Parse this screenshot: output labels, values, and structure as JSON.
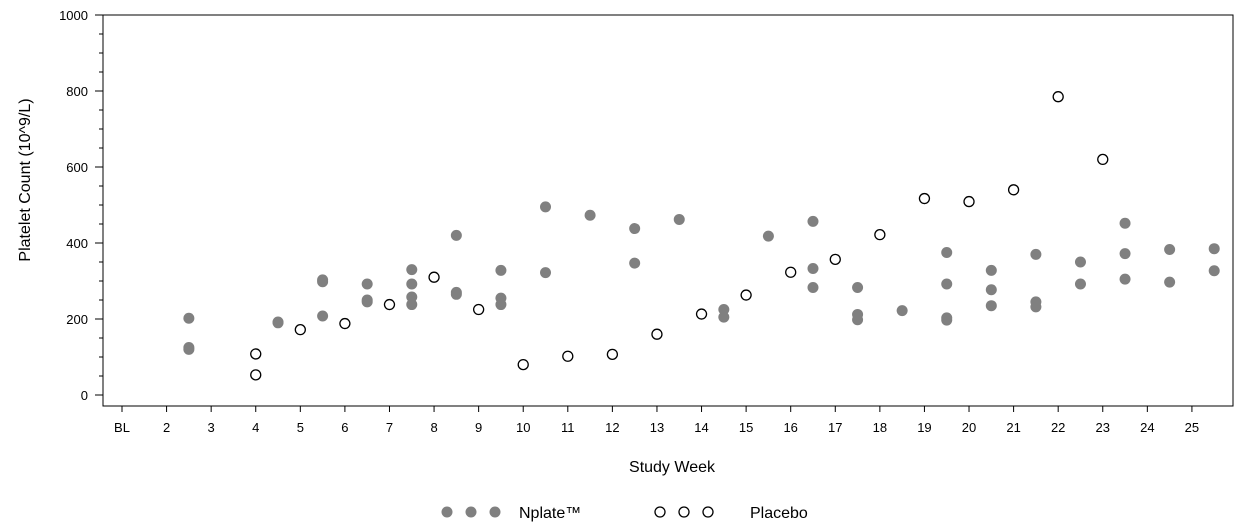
{
  "chart_data": {
    "type": "scatter",
    "title": "",
    "xlabel": "Study Week",
    "ylabel": "Platelet Count (10^9/L)",
    "ylim": [
      0,
      1000
    ],
    "yticks": [
      0,
      200,
      400,
      600,
      800,
      1000
    ],
    "categories": [
      "BL",
      "2",
      "3",
      "4",
      "5",
      "6",
      "7",
      "8",
      "9",
      "10",
      "11",
      "12",
      "13",
      "14",
      "15",
      "16",
      "17",
      "18",
      "19",
      "20",
      "21",
      "22",
      "23",
      "24",
      "25"
    ],
    "grid": false,
    "legend_position": "bottom-center",
    "series": [
      {
        "name": "Nplate™",
        "marker": "filled-circle",
        "color": "#808080",
        "points": [
          {
            "x": 2.5,
            "y": 202
          },
          {
            "x": 2.5,
            "y": 125
          },
          {
            "x": 2.5,
            "y": 120
          },
          {
            "x": 4.5,
            "y": 192
          },
          {
            "x": 4.5,
            "y": 190
          },
          {
            "x": 5.5,
            "y": 303
          },
          {
            "x": 5.5,
            "y": 298
          },
          {
            "x": 5.5,
            "y": 208
          },
          {
            "x": 6.5,
            "y": 292
          },
          {
            "x": 6.5,
            "y": 250
          },
          {
            "x": 6.5,
            "y": 245
          },
          {
            "x": 7.5,
            "y": 330
          },
          {
            "x": 7.5,
            "y": 292
          },
          {
            "x": 7.5,
            "y": 258
          },
          {
            "x": 7.5,
            "y": 238
          },
          {
            "x": 8.5,
            "y": 420
          },
          {
            "x": 8.5,
            "y": 270
          },
          {
            "x": 8.5,
            "y": 265
          },
          {
            "x": 9.5,
            "y": 328
          },
          {
            "x": 9.5,
            "y": 255
          },
          {
            "x": 9.5,
            "y": 238
          },
          {
            "x": 10.5,
            "y": 495
          },
          {
            "x": 10.5,
            "y": 322
          },
          {
            "x": 11.5,
            "y": 473
          },
          {
            "x": 12.5,
            "y": 438
          },
          {
            "x": 12.5,
            "y": 347
          },
          {
            "x": 13.5,
            "y": 462
          },
          {
            "x": 14.5,
            "y": 225
          },
          {
            "x": 14.5,
            "y": 205
          },
          {
            "x": 15.5,
            "y": 418
          },
          {
            "x": 16.5,
            "y": 457
          },
          {
            "x": 16.5,
            "y": 333
          },
          {
            "x": 16.5,
            "y": 283
          },
          {
            "x": 17.5,
            "y": 283
          },
          {
            "x": 17.5,
            "y": 212
          },
          {
            "x": 17.5,
            "y": 198
          },
          {
            "x": 18.5,
            "y": 222
          },
          {
            "x": 19.5,
            "y": 375
          },
          {
            "x": 19.5,
            "y": 292
          },
          {
            "x": 19.5,
            "y": 203
          },
          {
            "x": 19.5,
            "y": 197
          },
          {
            "x": 20.5,
            "y": 328
          },
          {
            "x": 20.5,
            "y": 277
          },
          {
            "x": 20.5,
            "y": 235
          },
          {
            "x": 21.5,
            "y": 370
          },
          {
            "x": 21.5,
            "y": 245
          },
          {
            "x": 21.5,
            "y": 232
          },
          {
            "x": 22.5,
            "y": 350
          },
          {
            "x": 22.5,
            "y": 292
          },
          {
            "x": 23.5,
            "y": 452
          },
          {
            "x": 23.5,
            "y": 372
          },
          {
            "x": 23.5,
            "y": 305
          },
          {
            "x": 24.5,
            "y": 383
          },
          {
            "x": 24.5,
            "y": 297
          },
          {
            "x": 25.5,
            "y": 385
          },
          {
            "x": 25.5,
            "y": 327
          }
        ]
      },
      {
        "name": "Placebo",
        "marker": "open-circle",
        "color": "#000000",
        "points": [
          {
            "x": 4,
            "y": 108
          },
          {
            "x": 4,
            "y": 53
          },
          {
            "x": 5,
            "y": 172
          },
          {
            "x": 6,
            "y": 188
          },
          {
            "x": 7,
            "y": 238
          },
          {
            "x": 8,
            "y": 310
          },
          {
            "x": 9,
            "y": 225
          },
          {
            "x": 10,
            "y": 80
          },
          {
            "x": 11,
            "y": 102
          },
          {
            "x": 12,
            "y": 107
          },
          {
            "x": 13,
            "y": 160
          },
          {
            "x": 14,
            "y": 213
          },
          {
            "x": 15,
            "y": 263
          },
          {
            "x": 16,
            "y": 323
          },
          {
            "x": 17,
            "y": 357
          },
          {
            "x": 18,
            "y": 422
          },
          {
            "x": 19,
            "y": 517
          },
          {
            "x": 20,
            "y": 509
          },
          {
            "x": 21,
            "y": 540
          },
          {
            "x": 22,
            "y": 785
          },
          {
            "x": 23,
            "y": 620
          }
        ]
      }
    ]
  }
}
